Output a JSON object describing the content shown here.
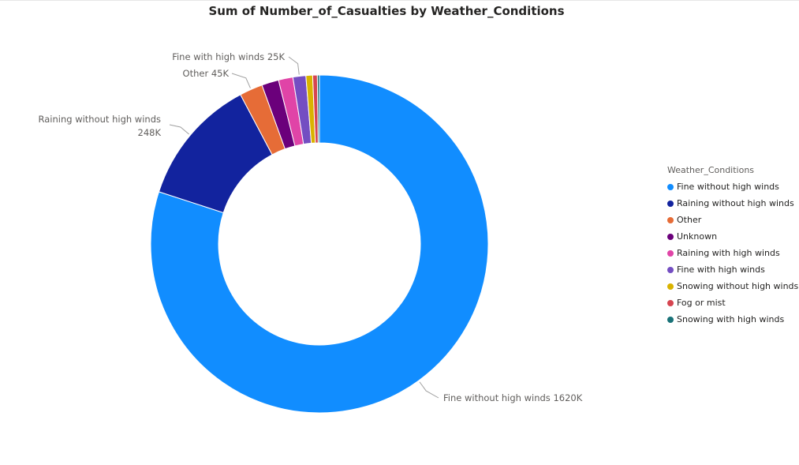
{
  "chart_data": {
    "type": "pie",
    "variant": "donut",
    "title": "Sum of Number_of_Casualties by Weather_Conditions",
    "legend_title": "Weather_Conditions",
    "legend_position": "right",
    "categories": [
      "Fine without high winds",
      "Raining without high winds",
      "Other",
      "Unknown",
      "Raining with high winds",
      "Fine with high winds",
      "Snowing without high winds",
      "Fog or mist",
      "Snowing with high winds"
    ],
    "values": [
      1620000,
      248000,
      45000,
      33000,
      28000,
      25000,
      13000,
      9000,
      4000
    ],
    "colors": [
      "#118DFF",
      "#12239E",
      "#E66C37",
      "#6B007B",
      "#E044A7",
      "#744EC2",
      "#D9B300",
      "#D64550",
      "#197278"
    ],
    "data_labels": [
      {
        "category": "Fine without high winds",
        "text": "Fine without high winds 1620K"
      },
      {
        "category": "Raining without high winds",
        "lines": [
          "Raining without high winds",
          "248K"
        ]
      },
      {
        "category": "Other",
        "text": "Other 45K"
      },
      {
        "category": "Fine with high winds",
        "text": "Fine with high winds 25K"
      }
    ]
  }
}
